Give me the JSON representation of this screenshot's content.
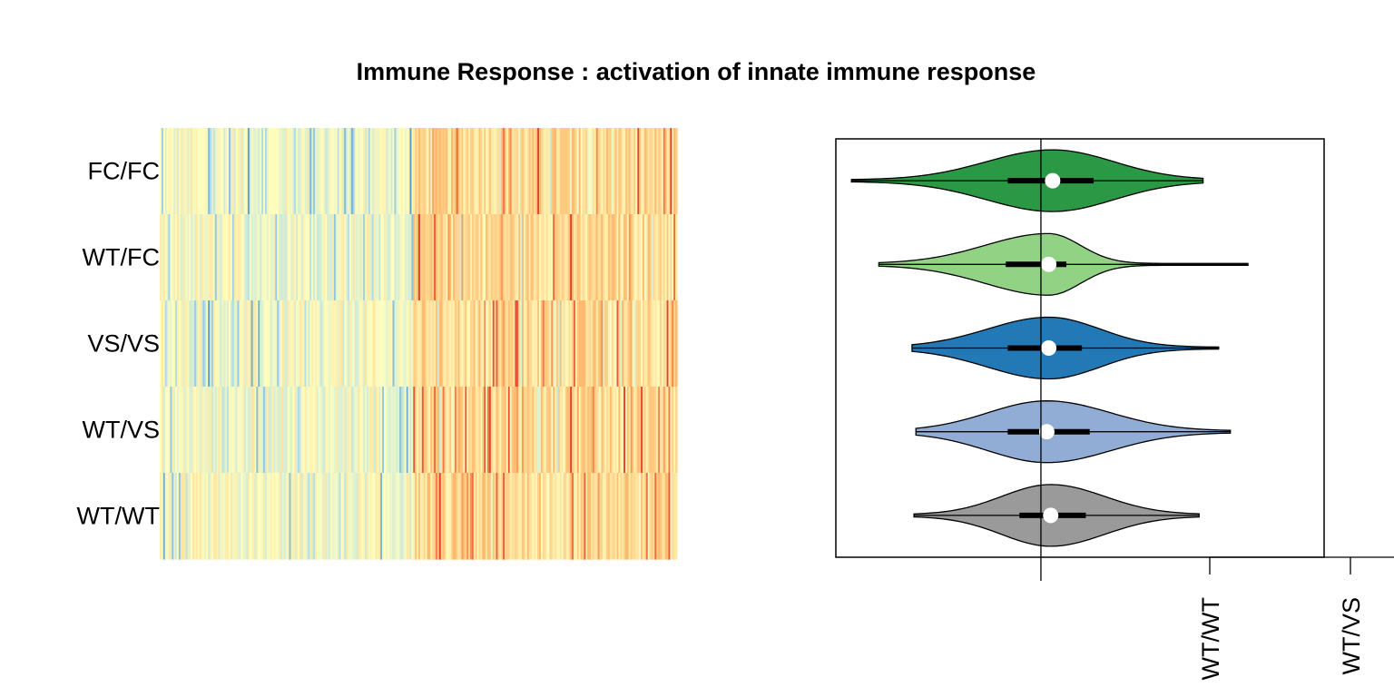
{
  "chart_data": [
    {
      "type": "heatmap",
      "title": "Immune Response : activation of innate immune response",
      "rows": [
        "FC/FC",
        "WT/FC",
        "VS/VS",
        "WT/VS",
        "WT/WT"
      ],
      "columns_approx": 300,
      "pattern": "left ~half of genes lower expression (blue/pale yellow), right ~half higher expression (yellow/orange/red)",
      "colormap": [
        "#2c7bb6",
        "#abd9e9",
        "#ffffbf",
        "#fdae61",
        "#d7191c"
      ]
    },
    {
      "type": "violin",
      "orientation": "horizontal",
      "x_range": [
        -1.05,
        1.45
      ],
      "reference_line_x": 0,
      "series": [
        {
          "row": "FC/FC",
          "color": "#2a9845",
          "min": -0.97,
          "q1": -0.17,
          "median": 0.06,
          "q3": 0.27,
          "max": 0.83
        },
        {
          "row": "WT/FC",
          "color": "#91d285",
          "min": -0.83,
          "q1": -0.18,
          "median": 0.04,
          "q3": 0.13,
          "max": 1.06
        },
        {
          "row": "VS/VS",
          "color": "#2279b5",
          "min": -0.66,
          "q1": -0.17,
          "median": 0.04,
          "q3": 0.21,
          "max": 0.91
        },
        {
          "row": "WT/VS",
          "color": "#91acd5",
          "min": -0.64,
          "q1": -0.17,
          "median": 0.03,
          "q3": 0.25,
          "max": 0.97
        },
        {
          "row": "WT/WT",
          "color": "#9a9a9a",
          "min": -0.65,
          "q1": -0.11,
          "median": 0.05,
          "q3": 0.23,
          "max": 0.81
        }
      ],
      "x_tick_labels": [
        "WT/WT",
        "WT/VS"
      ]
    }
  ]
}
